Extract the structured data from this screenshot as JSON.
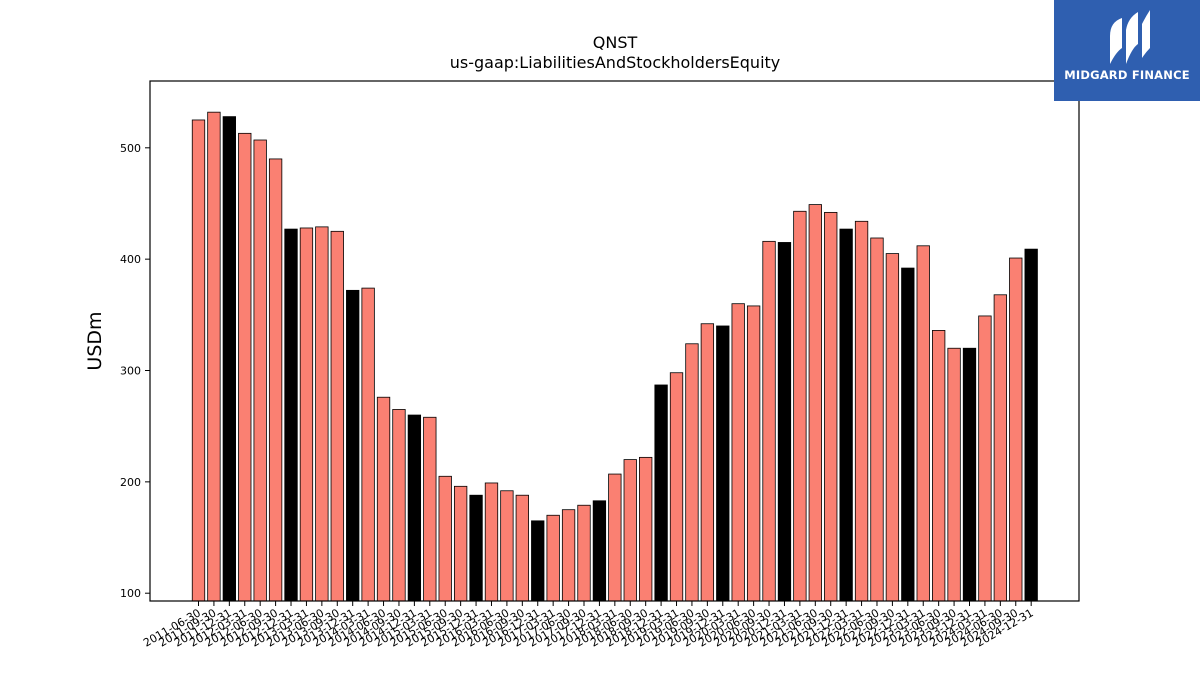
{
  "chart_data": {
    "type": "bar",
    "title": "QNST",
    "subtitle": "us-gaap:LiabilitiesAndStockholdersEquity",
    "ylabel": "USDm",
    "xlabel": "",
    "ylim": [
      93,
      560
    ],
    "yticks": [
      100,
      200,
      300,
      400,
      500
    ],
    "grid": false,
    "colors": {
      "quarter": "#fa8072",
      "year_end": "#000000",
      "edge": "#000000"
    },
    "categories": [
      "2011-06-30",
      "2011-09-30",
      "2011-12-31",
      "2012-03-31",
      "2012-06-30",
      "2012-09-30",
      "2012-12-31",
      "2013-03-31",
      "2013-06-30",
      "2013-09-30",
      "2013-12-31",
      "2014-03-31",
      "2014-06-30",
      "2014-09-30",
      "2014-12-31",
      "2015-03-31",
      "2015-06-30",
      "2015-09-30",
      "2015-12-31",
      "2016-03-31",
      "2016-06-30",
      "2016-09-30",
      "2016-12-31",
      "2017-03-31",
      "2017-06-30",
      "2017-09-30",
      "2017-12-31",
      "2018-03-31",
      "2018-06-30",
      "2018-09-30",
      "2018-12-31",
      "2019-03-31",
      "2019-06-30",
      "2019-09-30",
      "2019-12-31",
      "2020-03-31",
      "2020-06-30",
      "2020-09-30",
      "2020-12-31",
      "2021-03-31",
      "2021-06-30",
      "2021-09-30",
      "2021-12-31",
      "2022-03-31",
      "2022-06-30",
      "2022-09-30",
      "2022-12-31",
      "2023-03-31",
      "2023-06-30",
      "2023-09-30",
      "2023-12-31",
      "2024-03-31",
      "2024-06-30",
      "2024-09-30",
      "2024-12-31"
    ],
    "values": [
      525,
      532,
      528,
      513,
      507,
      490,
      427,
      428,
      429,
      425,
      372,
      374,
      276,
      265,
      260,
      258,
      205,
      196,
      188,
      199,
      192,
      188,
      165,
      170,
      175,
      179,
      183,
      207,
      220,
      222,
      287,
      298,
      324,
      342,
      340,
      360,
      358,
      416,
      415,
      443,
      449,
      442,
      427,
      434,
      419,
      405,
      392,
      412,
      336,
      320,
      320,
      349,
      368,
      401,
      409
    ],
    "highlight": [
      false,
      false,
      true,
      false,
      false,
      false,
      true,
      false,
      false,
      false,
      true,
      false,
      false,
      false,
      true,
      false,
      false,
      false,
      true,
      false,
      false,
      false,
      true,
      false,
      false,
      false,
      true,
      false,
      false,
      false,
      true,
      false,
      false,
      false,
      true,
      false,
      false,
      false,
      true,
      false,
      false,
      false,
      true,
      false,
      false,
      false,
      true,
      false,
      false,
      false,
      true,
      false,
      false,
      false,
      true
    ]
  },
  "logo": {
    "text": "MIDGARD FINANCE"
  }
}
